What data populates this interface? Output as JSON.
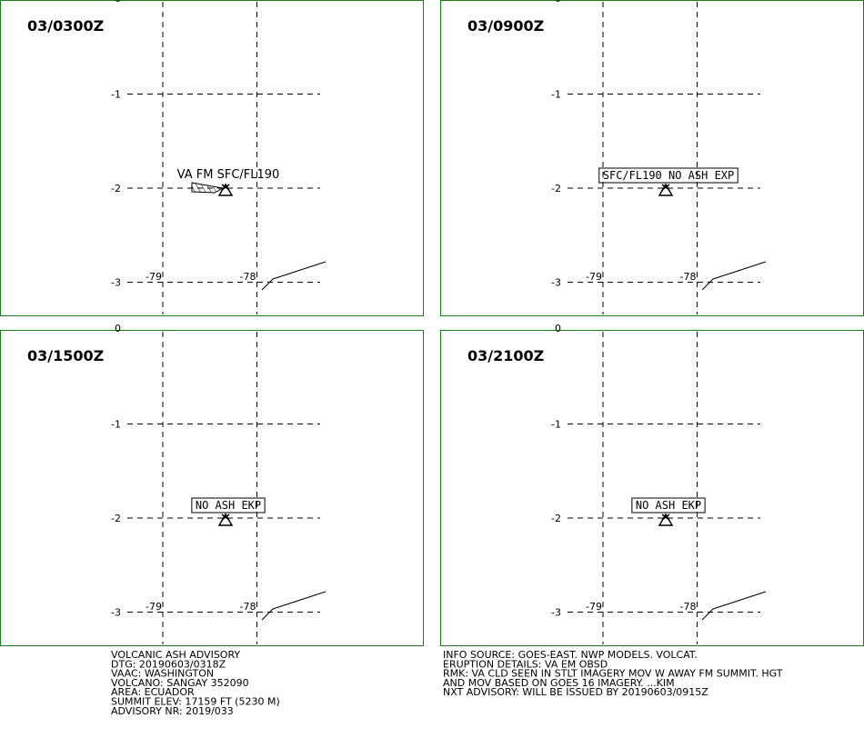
{
  "lat_ticks": [
    0,
    -1,
    -2,
    -3
  ],
  "lon_ticks": [
    -79,
    -78
  ],
  "panels": [
    {
      "time": "03/0300Z",
      "label": "VA FM SFC/FL190"
    },
    {
      "time": "03/0900Z",
      "label": "SFC/FL190 NO ASH EXP"
    },
    {
      "time": "03/1500Z",
      "label": "NO ASH EKP"
    },
    {
      "time": "03/2100Z",
      "label": "NO ASH EKP"
    }
  ],
  "advisory_left": [
    "VOLCANIC ASH ADVISORY",
    "DTG: 20190603/0318Z",
    "VAAC: WASHINGTON",
    "VOLCANO: SANGAY 352090",
    "AREA: ECUADOR",
    "SUMMIT ELEV: 17159 FT (5230 M)",
    "ADVISORY NR: 2019/033"
  ],
  "advisory_right": [
    "INFO SOURCE: GOES-EAST. NWP MODELS. VOLCAT.",
    "ERUPTION DETAILS: VA EM OBSD",
    "RMK: VA CLD SEEN IN STLT IMAGERY MOV W AWAY FM SUMMIT. HGT",
    "AND MOV BASED ON GOES 16 IMAGERY. ...KIM",
    "NXT ADVISORY: WILL BE ISSUED BY 20190603/0915Z"
  ]
}
